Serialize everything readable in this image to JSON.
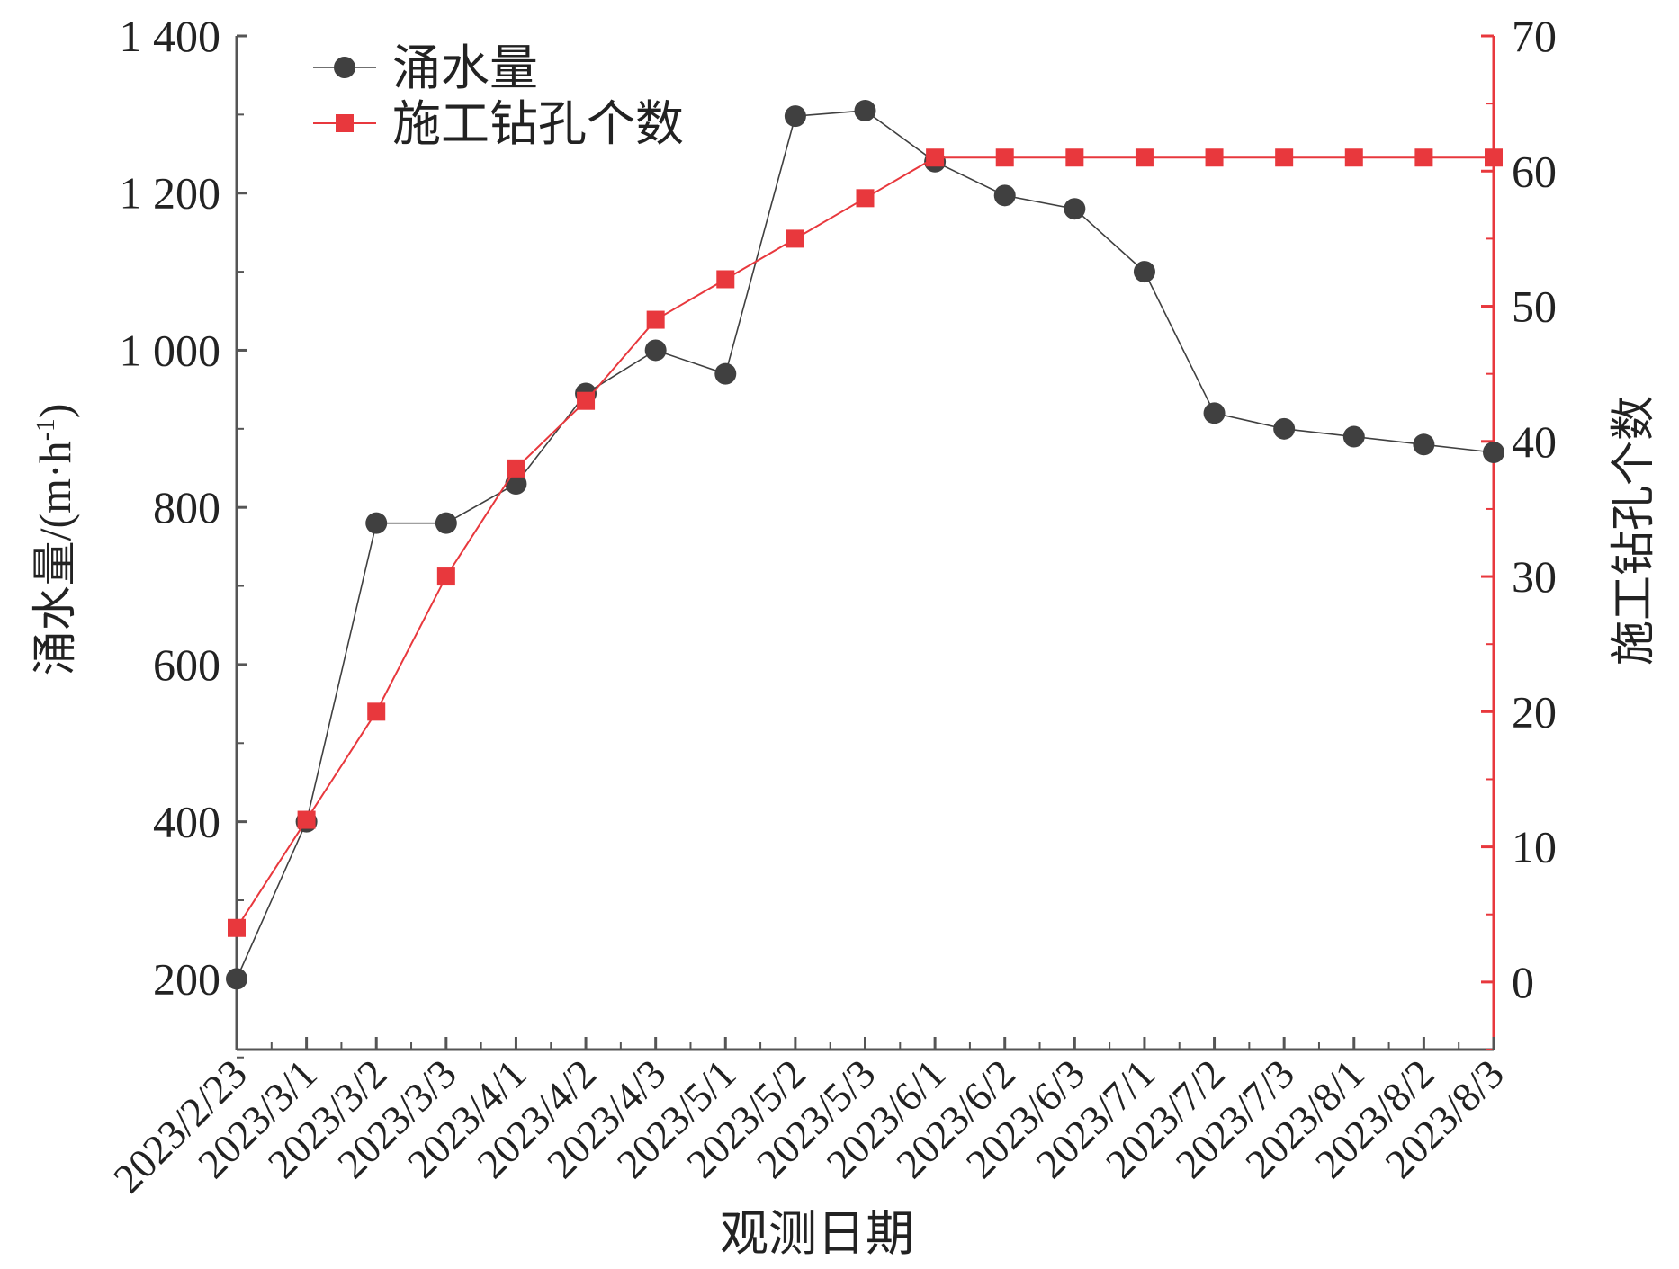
{
  "chart_data": {
    "type": "line",
    "x_label": "观测日期",
    "y_left_label": "涌水量/(m·h",
    "y_left_label_sup": "-1",
    "y_left_label_tail": ")",
    "y_right_label": "施工钻孔个数",
    "categories": [
      "2023/2/23",
      "2023/3/1",
      "2023/3/2",
      "2023/3/3",
      "2023/4/1",
      "2023/4/2",
      "2023/4/3",
      "2023/5/1",
      "2023/5/2",
      "2023/5/3",
      "2023/6/1",
      "2023/6/2",
      "2023/6/3",
      "2023/7/1",
      "2023/7/2",
      "2023/7/3",
      "2023/8/1",
      "2023/8/2",
      "2023/8/3"
    ],
    "y_left_ticks": [
      "200",
      "400",
      "600",
      "800",
      "1 000",
      "1 200",
      "1 400"
    ],
    "y_left_tick_values": [
      200,
      400,
      600,
      800,
      1000,
      1200,
      1400
    ],
    "y_right_ticks": [
      "0",
      "10",
      "20",
      "30",
      "40",
      "50",
      "60",
      "70"
    ],
    "y_right_tick_values": [
      0,
      10,
      20,
      30,
      40,
      50,
      60,
      70
    ],
    "y_left_range": [
      110,
      1400
    ],
    "y_right_range": [
      -5,
      70
    ],
    "series": [
      {
        "name": "涌水量",
        "axis": "left",
        "marker": "circle",
        "color": "#404040",
        "values": [
          200,
          400,
          780,
          780,
          830,
          945,
          1000,
          970,
          1298,
          1305,
          1240,
          1197,
          1180,
          1100,
          920,
          900,
          890,
          880,
          870
        ]
      },
      {
        "name": "施工钻孔个数",
        "axis": "right",
        "marker": "square",
        "color": "#e8383d",
        "values": [
          4,
          12,
          20,
          30,
          38,
          43,
          49,
          52,
          55,
          58,
          61,
          61,
          61,
          61,
          61,
          61,
          61,
          61,
          61
        ]
      }
    ],
    "legend_position": "top-left",
    "grid": false
  }
}
